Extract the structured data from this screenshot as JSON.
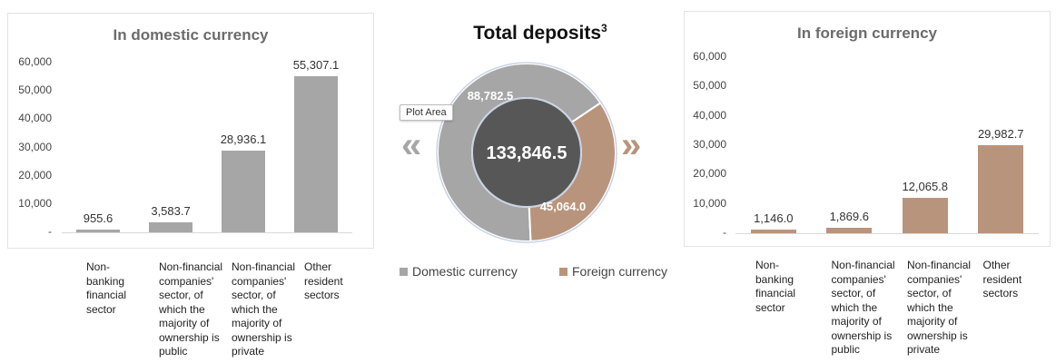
{
  "colors": {
    "domestic": "#a6a6a6",
    "foreign": "#b9947c",
    "center": "#575757"
  },
  "chart_data": [
    {
      "type": "bar",
      "title": "In domestic currency",
      "categories": [
        "Non-banking financial sector",
        "Non-financial companies' sector, of which the majority of ownership is public",
        "Non-financial companies' sector, of which the majority of ownership is private",
        "Other resident sectors"
      ],
      "values": [
        955.6,
        3583.7,
        28936.1,
        55307.1
      ],
      "value_labels": [
        "955.6",
        "3,583.7",
        "28,936.1",
        "55,307.1"
      ],
      "yticks": [
        "60,000",
        "50,000",
        "40,000",
        "30,000",
        "20,000",
        "10,000",
        "-"
      ],
      "ylim": [
        0,
        60000
      ],
      "grid": false
    },
    {
      "type": "pie",
      "title": "Total deposits",
      "title_sup": "3",
      "total_label": "133,846.5",
      "slices": [
        {
          "name": "Domestic currency",
          "value": 88782.5,
          "label": "88,782.5"
        },
        {
          "name": "Foreign currency",
          "value": 45064.0,
          "label": "45,064.0"
        }
      ],
      "legend": "bottom"
    },
    {
      "type": "bar",
      "title": "In foreign currency",
      "categories": [
        "Non-banking financial sector",
        "Non-financial companies' sector, of which the majority of ownership is public",
        "Non-financial companies' sector, of which the majority of ownership is private",
        "Other resident sectors"
      ],
      "values": [
        1146.0,
        1869.6,
        12065.8,
        29982.7
      ],
      "value_labels": [
        "1,146.0",
        "1,869.6",
        "12,065.8",
        "29,982.7"
      ],
      "yticks": [
        "60,000",
        "50,000",
        "40,000",
        "30,000",
        "20,000",
        "10,000",
        "-"
      ],
      "ylim": [
        0,
        60000
      ],
      "grid": false
    }
  ],
  "categories_wrapped": {
    "left": [
      [
        "Non-",
        "banking",
        "financial",
        "sector"
      ],
      [
        "Non-financial",
        "companies'",
        "sector, of",
        "which the",
        "majority of",
        "ownership is",
        "public"
      ],
      [
        "Non-financial",
        "companies'",
        "sector, of",
        "which the",
        "majority of",
        "ownership is",
        "private"
      ],
      [
        "Other",
        "resident",
        "sectors"
      ]
    ],
    "right": [
      [
        "Non-",
        "banking",
        "financial",
        "sector"
      ],
      [
        "Non-financial",
        "companies'",
        "sector, of",
        "which the",
        "majority of",
        "ownership is",
        "public"
      ],
      [
        "Non-financial",
        "companies'",
        "sector, of",
        "which the",
        "majority of",
        "ownership is",
        "private"
      ],
      [
        "Other",
        "resident",
        "sectors"
      ]
    ]
  },
  "tooltip": "Plot Area",
  "chevron_left": "«",
  "chevron_right": "»"
}
